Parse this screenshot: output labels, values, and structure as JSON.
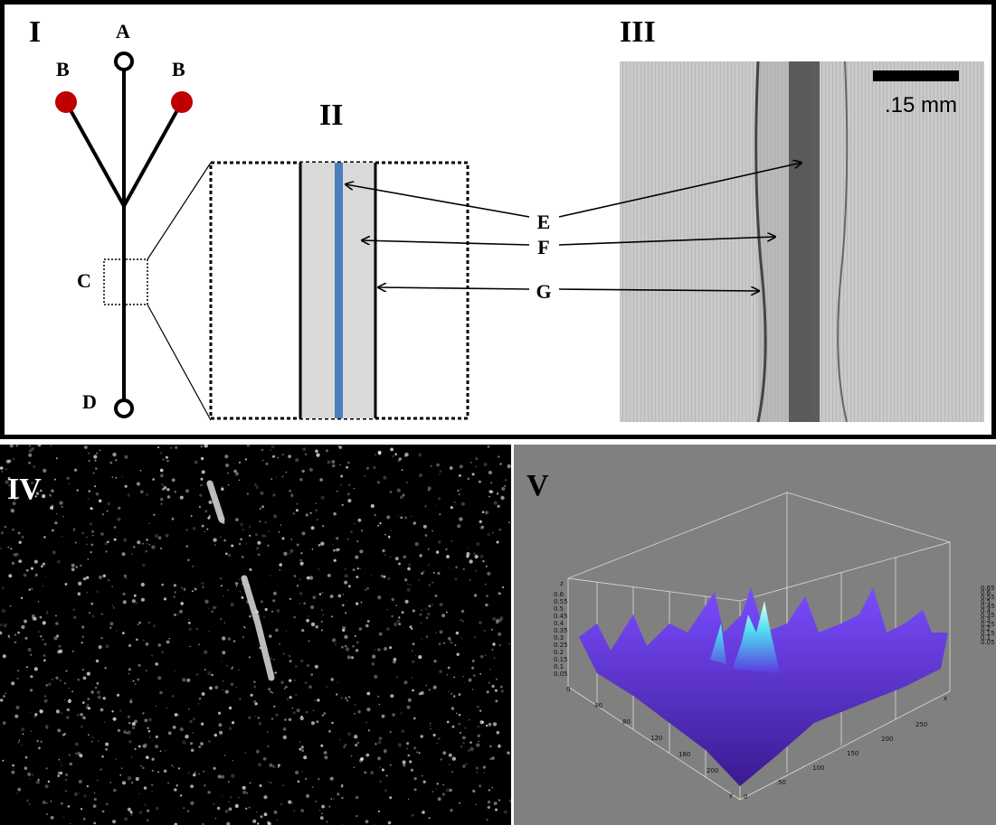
{
  "panels": {
    "labels": [
      "I",
      "II",
      "III",
      "IV",
      "V"
    ]
  },
  "schematic": {
    "nodes": [
      {
        "label": "A"
      },
      {
        "label": "B"
      },
      {
        "label": "B"
      },
      {
        "label": "C"
      },
      {
        "label": "D"
      }
    ]
  },
  "annotations": {
    "labels": [
      "E",
      "F",
      "G"
    ]
  },
  "micrograph": {
    "scale_bar": ".15 mm"
  },
  "surface_plot": {
    "z_label": "z",
    "z_ticks": [
      "0.6",
      "0.55",
      "0.5",
      "0.45",
      "0.4",
      "0.35",
      "0.3",
      "0.25",
      "0.2",
      "0.15",
      "0.1",
      "0.05"
    ],
    "y_label": "y",
    "y_ticks": [
      "0",
      "40",
      "80",
      "120",
      "160",
      "200"
    ],
    "x_label": "x",
    "x_ticks": [
      "0",
      "50",
      "100",
      "150",
      "200",
      "250"
    ],
    "colorbar_ticks": [
      "0.65",
      "0.6",
      "0.55",
      "0.5",
      "0.45",
      "0.4",
      "0.35",
      "0.3",
      "0.25",
      "0.2",
      "0.15",
      "0.1",
      "0.05"
    ]
  }
}
